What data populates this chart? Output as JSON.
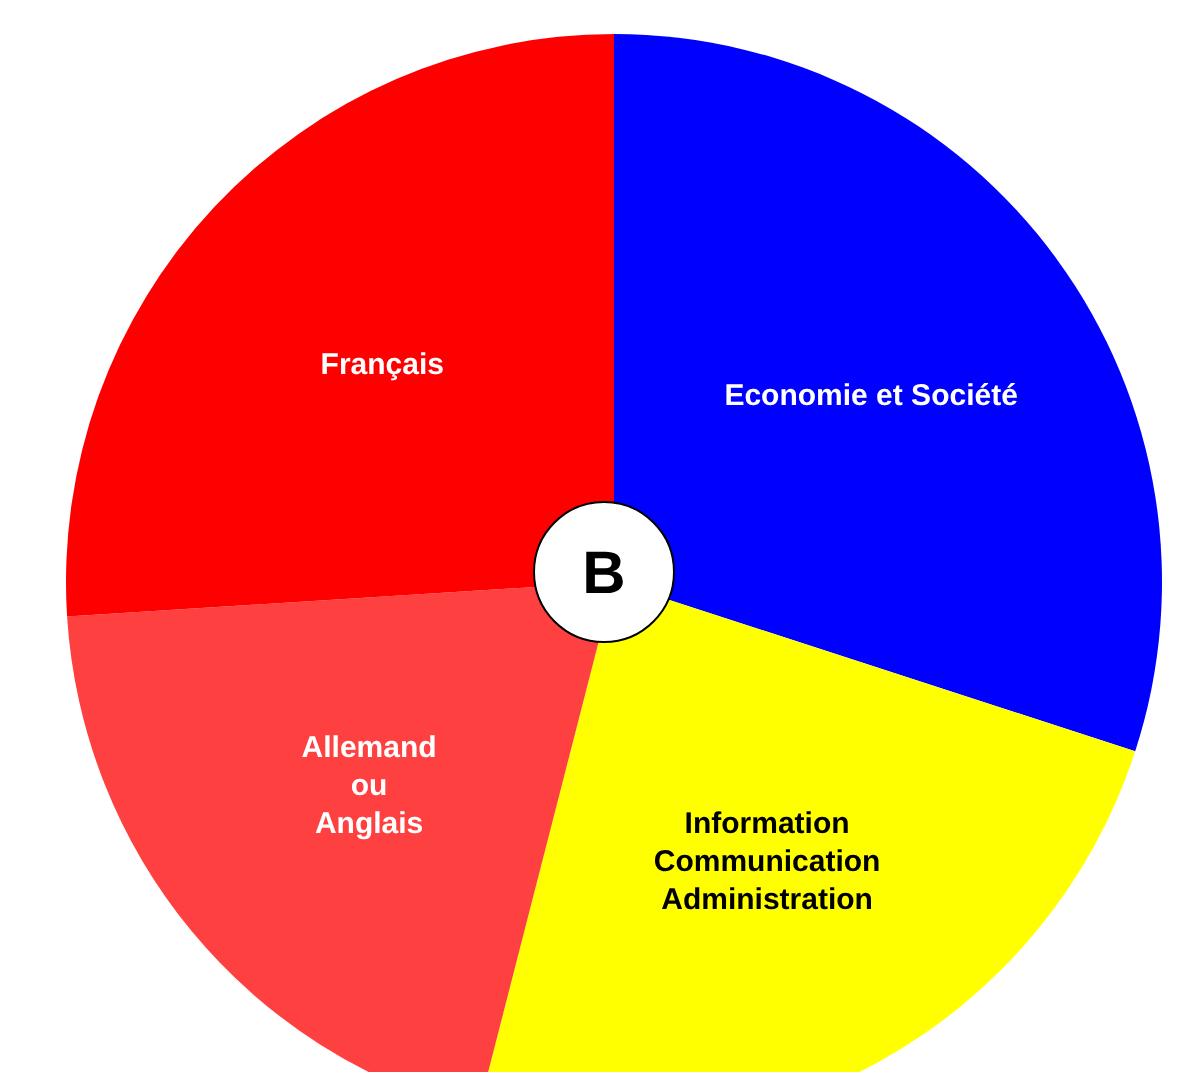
{
  "chart_data": {
    "type": "pie",
    "categories": [
      "Economie et Société",
      "Information\nCommunication\nAdministration",
      "Allemand\nou\nAnglais",
      "Français"
    ],
    "values": [
      30,
      24,
      20,
      26
    ],
    "colors": [
      "#0000ff",
      "#ffff00",
      "#ff4040",
      "#ff0000"
    ],
    "annotations": [
      "B"
    ],
    "legend": false
  }
}
